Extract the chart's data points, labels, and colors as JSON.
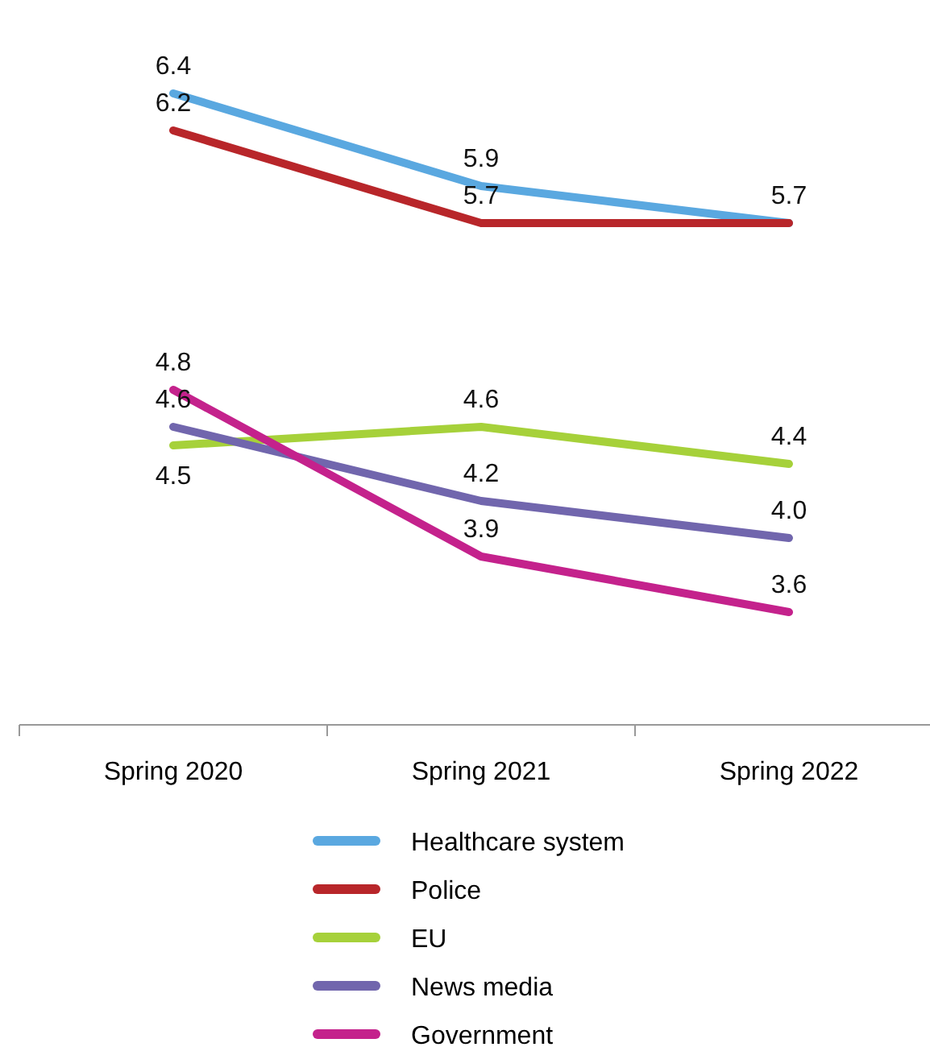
{
  "chart_data": {
    "type": "line",
    "categories": [
      "Spring 2020",
      "Spring 2021",
      "Spring 2022"
    ],
    "series": [
      {
        "name": "Healthcare system",
        "color": "#5aa8e0",
        "values": [
          6.4,
          5.9,
          5.7
        ],
        "value_labels": [
          "6.4",
          "5.9",
          "5.7"
        ]
      },
      {
        "name": "Police",
        "color": "#b8262a",
        "values": [
          6.2,
          5.7,
          5.7
        ],
        "value_labels": [
          "6.2",
          "5.7",
          null
        ]
      },
      {
        "name": "EU",
        "color": "#a6d13a",
        "values": [
          4.5,
          4.6,
          4.4
        ],
        "value_labels": [
          "4.5",
          "4.6",
          "4.4"
        ]
      },
      {
        "name": "News media",
        "color": "#7166ad",
        "values": [
          4.6,
          4.2,
          4.0
        ],
        "value_labels": [
          "4.6",
          "4.2",
          "4.0"
        ]
      },
      {
        "name": "Government",
        "color": "#c4228c",
        "values": [
          4.8,
          3.9,
          3.6
        ],
        "value_labels": [
          "4.8",
          "3.9",
          "3.6"
        ]
      }
    ],
    "tick_labels": "x",
    "legend": "bottom",
    "marker": "none",
    "line_style": "solid"
  }
}
